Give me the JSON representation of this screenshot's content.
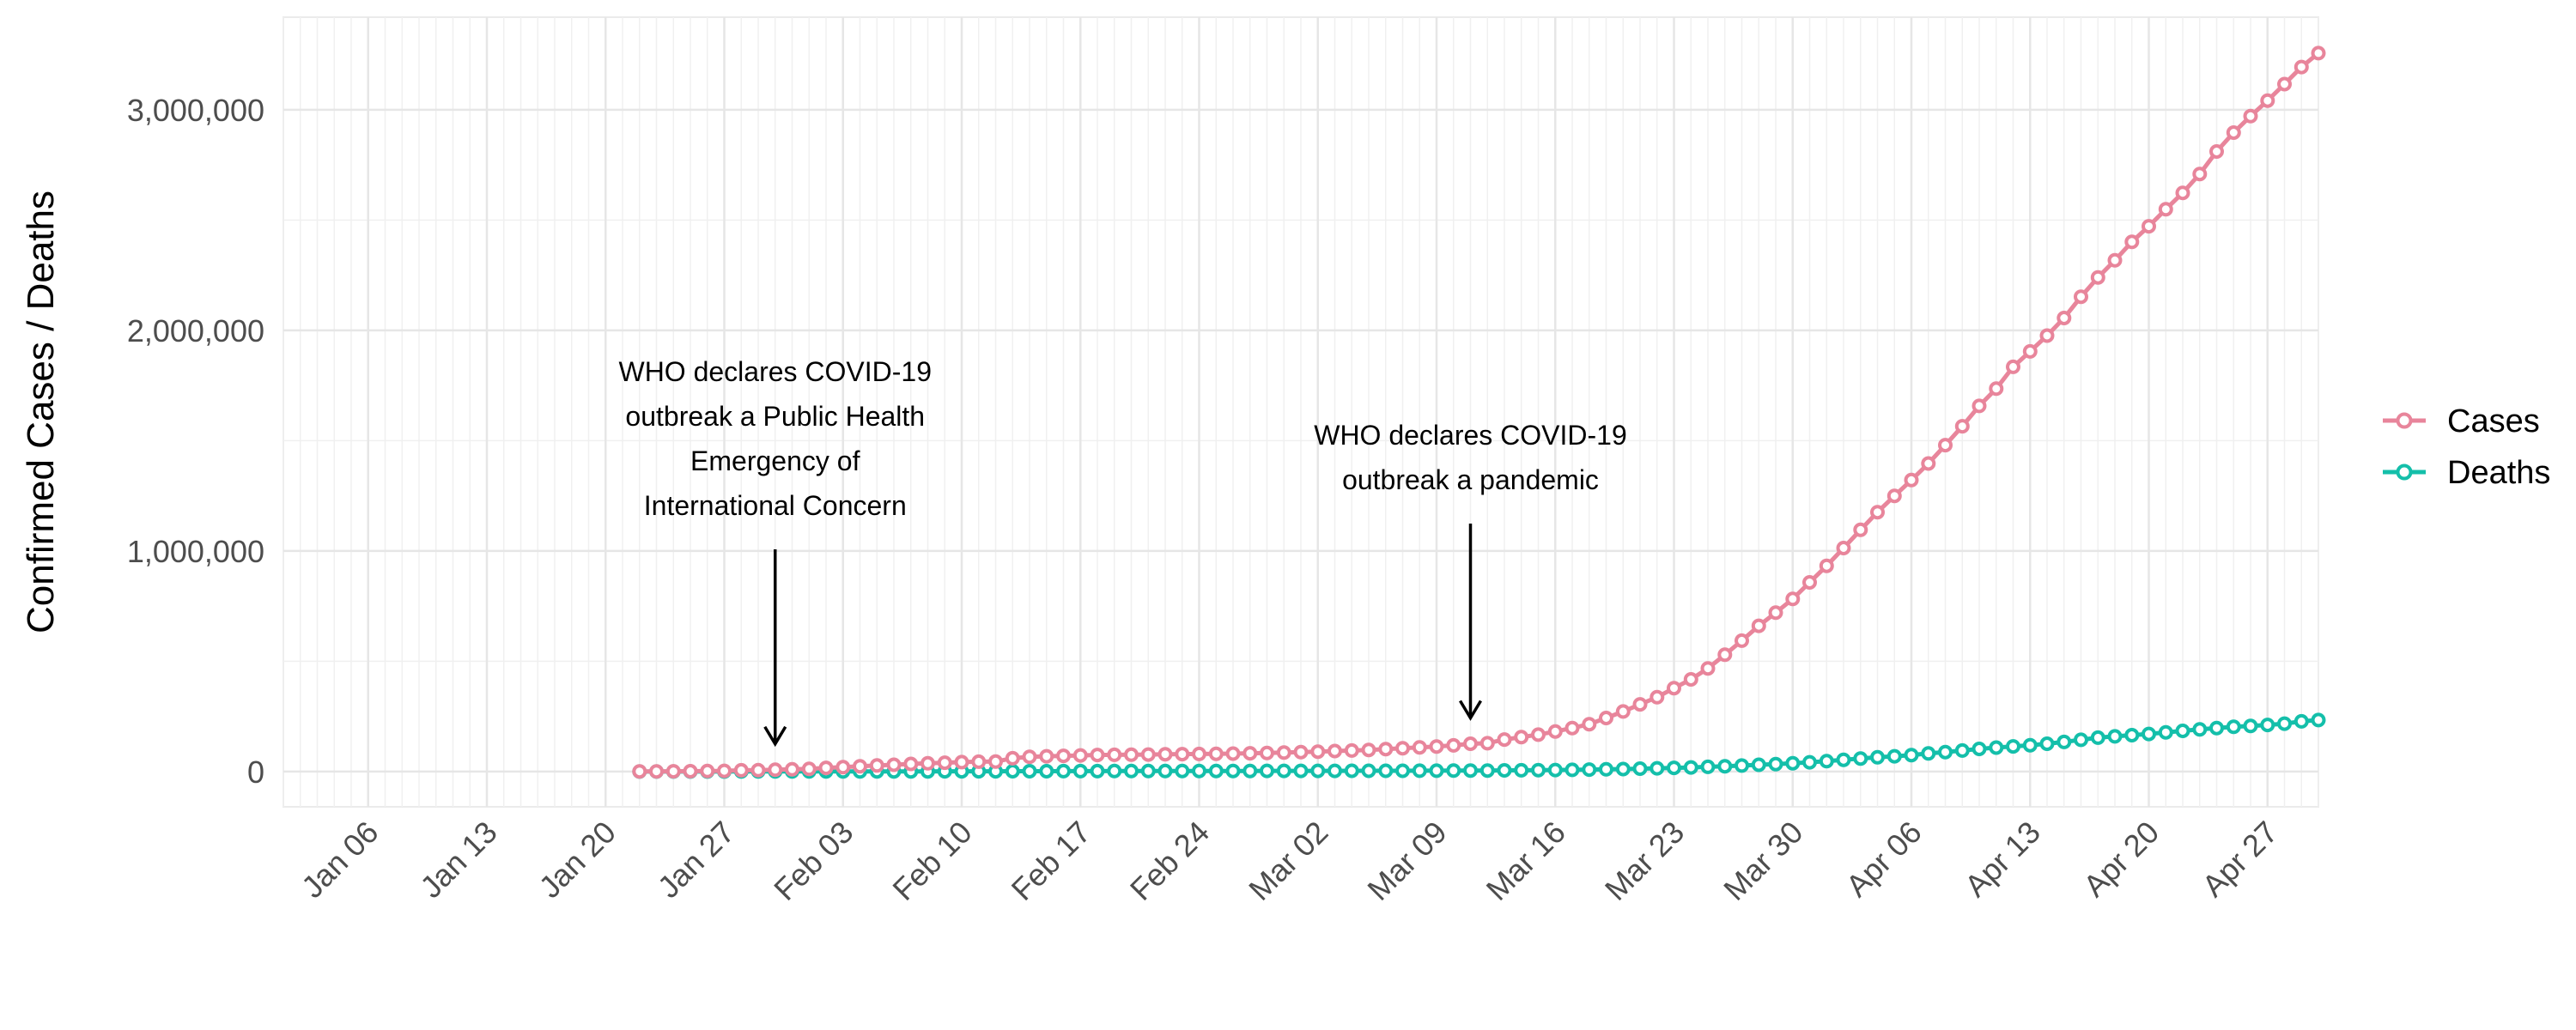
{
  "chart_data": {
    "type": "line",
    "title": "",
    "xlabel": "",
    "ylabel": "Confirmed Cases / Deaths",
    "x_tick_labels": [
      "Jan 06",
      "Jan 13",
      "Jan 20",
      "Jan 27",
      "Feb 03",
      "Feb 10",
      "Feb 17",
      "Feb 24",
      "Mar 02",
      "Mar 09",
      "Mar 16",
      "Mar 23",
      "Mar 30",
      "Apr 06",
      "Apr 13",
      "Apr 20",
      "Apr 27"
    ],
    "y_tick_labels": [
      "0",
      "1,000,000",
      "2,000,000",
      "3,000,000"
    ],
    "y_ticks": [
      0,
      1000000,
      2000000,
      3000000
    ],
    "xlim": [
      "2020-01-01",
      "2020-04-30"
    ],
    "ylim": [
      -160000,
      3420000
    ],
    "grid": true,
    "legend_position": "right",
    "x": [
      "2020-01-22",
      "2020-01-23",
      "2020-01-24",
      "2020-01-25",
      "2020-01-26",
      "2020-01-27",
      "2020-01-28",
      "2020-01-29",
      "2020-01-30",
      "2020-01-31",
      "2020-02-01",
      "2020-02-02",
      "2020-02-03",
      "2020-02-04",
      "2020-02-05",
      "2020-02-06",
      "2020-02-07",
      "2020-02-08",
      "2020-02-09",
      "2020-02-10",
      "2020-02-11",
      "2020-02-12",
      "2020-02-13",
      "2020-02-14",
      "2020-02-15",
      "2020-02-16",
      "2020-02-17",
      "2020-02-18",
      "2020-02-19",
      "2020-02-20",
      "2020-02-21",
      "2020-02-22",
      "2020-02-23",
      "2020-02-24",
      "2020-02-25",
      "2020-02-26",
      "2020-02-27",
      "2020-02-28",
      "2020-02-29",
      "2020-03-01",
      "2020-03-02",
      "2020-03-03",
      "2020-03-04",
      "2020-03-05",
      "2020-03-06",
      "2020-03-07",
      "2020-03-08",
      "2020-03-09",
      "2020-03-10",
      "2020-03-11",
      "2020-03-12",
      "2020-03-13",
      "2020-03-14",
      "2020-03-15",
      "2020-03-16",
      "2020-03-17",
      "2020-03-18",
      "2020-03-19",
      "2020-03-20",
      "2020-03-21",
      "2020-03-22",
      "2020-03-23",
      "2020-03-24",
      "2020-03-25",
      "2020-03-26",
      "2020-03-27",
      "2020-03-28",
      "2020-03-29",
      "2020-03-30",
      "2020-03-31",
      "2020-04-01",
      "2020-04-02",
      "2020-04-03",
      "2020-04-04",
      "2020-04-05",
      "2020-04-06",
      "2020-04-07",
      "2020-04-08",
      "2020-04-09",
      "2020-04-10",
      "2020-04-11",
      "2020-04-12",
      "2020-04-13",
      "2020-04-14",
      "2020-04-15",
      "2020-04-16",
      "2020-04-17",
      "2020-04-18",
      "2020-04-19",
      "2020-04-20",
      "2020-04-21",
      "2020-04-22",
      "2020-04-23",
      "2020-04-24",
      "2020-04-25",
      "2020-04-26",
      "2020-04-27",
      "2020-04-28",
      "2020-04-29",
      "2020-04-30"
    ],
    "series": [
      {
        "name": "Cases",
        "color": "#E8859B",
        "values": [
          555,
          654,
          941,
          1434,
          2118,
          2927,
          5578,
          6166,
          8234,
          9927,
          12038,
          16787,
          19887,
          23898,
          27643,
          30802,
          34395,
          37129,
          40160,
          42768,
          44810,
          45226,
          60381,
          66907,
          69052,
          71235,
          73270,
          75152,
          75653,
          76212,
          76841,
          78602,
          78982,
          79546,
          80400,
          81377,
          82756,
          84124,
          86013,
          88369,
          90306,
          92840,
          95120,
          97886,
          101801,
          105847,
          109821,
          113590,
          118620,
          125875,
          128343,
          145193,
          156097,
          167449,
          181546,
          197168,
          214915,
          242713,
          272167,
          304528,
          336953,
          378235,
          418045,
          467653,
          529591,
          593291,
          660706,
          720117,
          782365,
          857487,
          932605,
          1013157,
          1095917,
          1175857,
          1249754,
          1321481,
          1396476,
          1479804,
          1565278,
          1657526,
          1735650,
          1834721,
          1904838,
          1976191,
          2056054,
          2152437,
          2240190,
          2317759,
          2401378,
          2472259,
          2549294,
          2623415,
          2708885,
          2811193,
          2896746,
          2971475,
          3041764,
          3116398,
          3193886,
          3256846
        ]
      },
      {
        "name": "Deaths",
        "color": "#14BFAA",
        "values": [
          17,
          18,
          26,
          42,
          56,
          82,
          131,
          133,
          171,
          213,
          259,
          362,
          426,
          492,
          564,
          634,
          719,
          806,
          906,
          1013,
          1113,
          1118,
          1371,
          1523,
          1666,
          1770,
          1868,
          2007,
          2122,
          2247,
          2251,
          2458,
          2469,
          2629,
          2708,
          2770,
          2814,
          2872,
          2941,
          2996,
          3085,
          3160,
          3254,
          3348,
          3460,
          3558,
          3802,
          3988,
          4262,
          4615,
          4720,
          5404,
          5819,
          6440,
          7126,
          7905,
          8733,
          9867,
          11299,
          12973,
          14623,
          16497,
          18615,
          21181,
          23970,
          27198,
          30652,
          33925,
          37582,
          42107,
          47180,
          53190,
          59172,
          64606,
          69374,
          74565,
          81865,
          88338,
          95455,
          102525,
          108503,
          114090,
          119482,
          125984,
          134176,
          143800,
          153822,
          159510,
          165044,
          170423,
          177641,
          184235,
          190858,
          197159,
          202848,
          206544,
          211167,
          217153,
          227743,
          233388
        ]
      }
    ],
    "annotations": [
      {
        "date": "2020-01-30",
        "lines": [
          "WHO declares COVID-19",
          "outbreak a Public Health",
          "Emergency of",
          "International Concern"
        ]
      },
      {
        "date": "2020-03-11",
        "lines": [
          "WHO declares COVID-19",
          "outbreak a pandemic"
        ]
      }
    ]
  }
}
